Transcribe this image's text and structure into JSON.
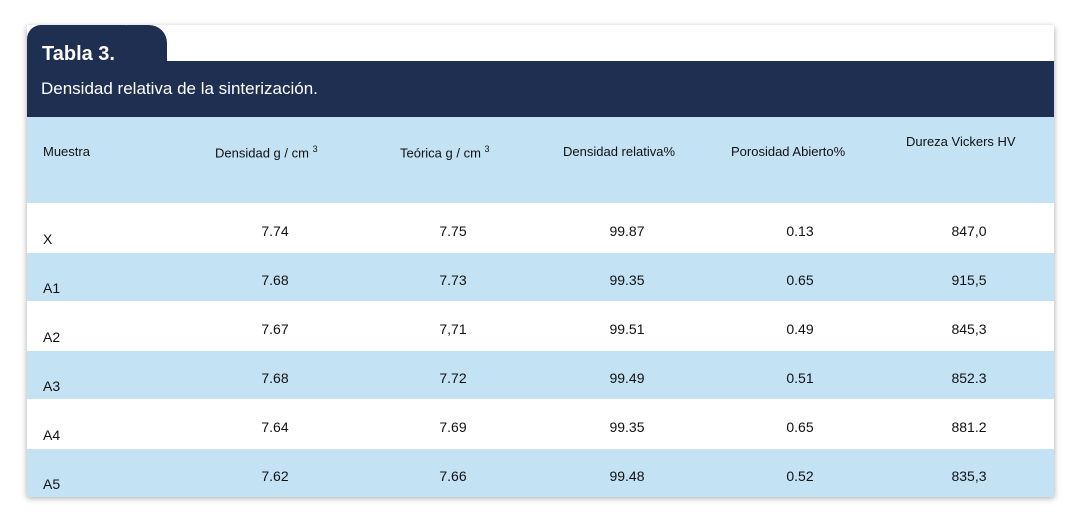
{
  "table": {
    "label": "Tabla 3.",
    "caption": "Densidad relativa de la sinterización.",
    "headers": {
      "muestra": "Muestra",
      "densidad": "Densidad g / cm",
      "densidad_sup": "3",
      "teorica": "Teórica g / cm",
      "teorica_sup": "3",
      "densidad_relativa": "Densidad relativa%",
      "porosidad": "Porosidad Abierto%",
      "dureza": "Dureza Vickers HV"
    },
    "rows": [
      {
        "muestra": "X",
        "densidad": "7.74",
        "teorica": "7.75",
        "relativa": "99.87",
        "porosidad": "0.13",
        "dureza": "847,0"
      },
      {
        "muestra": "A1",
        "densidad": "7.68",
        "teorica": "7.73",
        "relativa": "99.35",
        "porosidad": "0.65",
        "dureza": "915,5"
      },
      {
        "muestra": "A2",
        "densidad": "7.67",
        "teorica": "7,71",
        "relativa": "99.51",
        "porosidad": "0.49",
        "dureza": "845,3"
      },
      {
        "muestra": "A3",
        "densidad": "7.68",
        "teorica": "7.72",
        "relativa": "99.49",
        "porosidad": "0.51",
        "dureza": "852.3"
      },
      {
        "muestra": "A4",
        "densidad": "7.64",
        "teorica": "7.69",
        "relativa": "99.35",
        "porosidad": "0.65",
        "dureza": "881.2"
      },
      {
        "muestra": "A5",
        "densidad": "7.62",
        "teorica": "7.66",
        "relativa": "99.48",
        "porosidad": "0.52",
        "dureza": "835,3"
      }
    ]
  },
  "colors": {
    "header_dark": "#1e2f52",
    "row_light_blue": "#c3e3f5"
  }
}
